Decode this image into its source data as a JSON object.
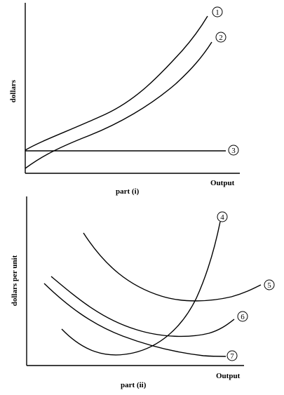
{
  "panel_i": {
    "ylabel": "dollars",
    "xlabel": "Output",
    "caption": "part (i)",
    "curves": [
      {
        "id": "curve-1",
        "label": "1"
      },
      {
        "id": "curve-2",
        "label": "2"
      },
      {
        "id": "curve-3",
        "label": "3"
      }
    ]
  },
  "panel_ii": {
    "ylabel": "dollars per unit",
    "xlabel": "Output",
    "caption": "part (ii)",
    "curves": [
      {
        "id": "curve-4",
        "label": "4"
      },
      {
        "id": "curve-5",
        "label": "5"
      },
      {
        "id": "curve-6",
        "label": "6"
      },
      {
        "id": "curve-7",
        "label": "7"
      }
    ]
  }
}
